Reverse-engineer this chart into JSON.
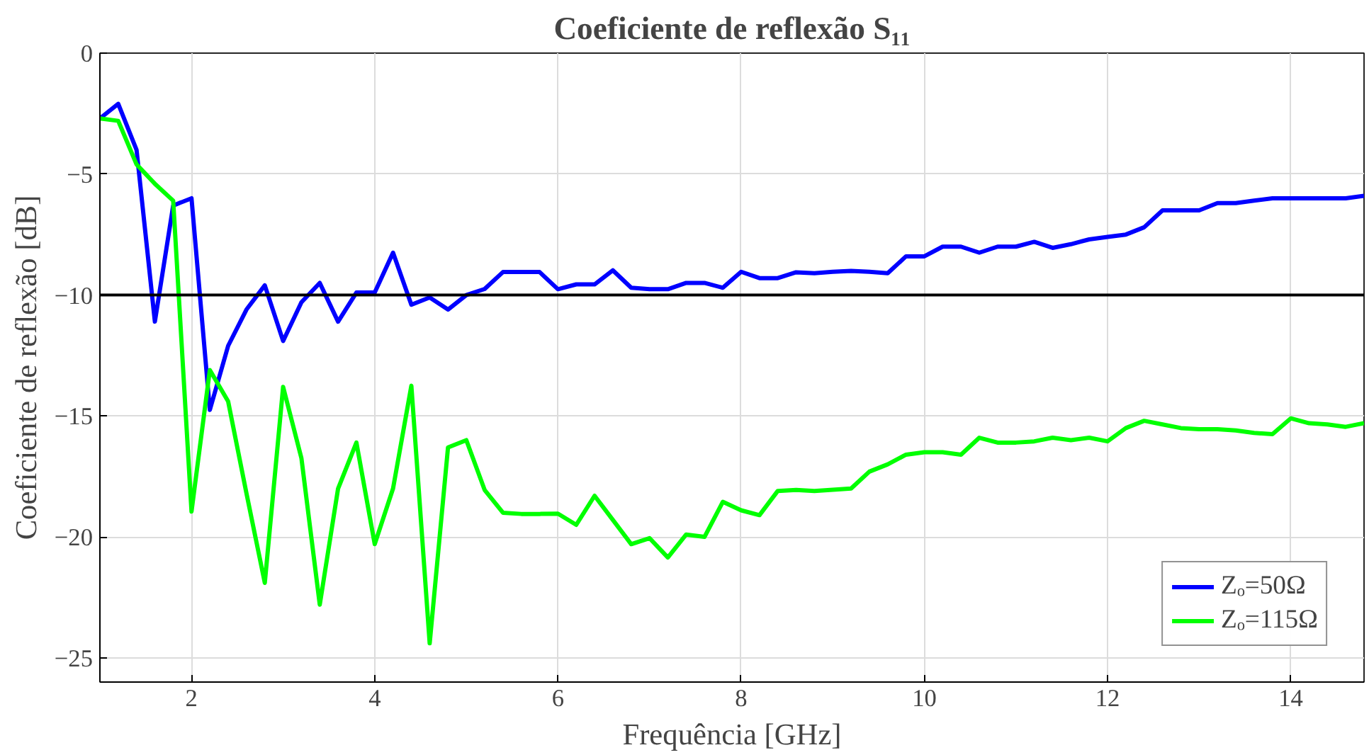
{
  "chart_data": {
    "type": "line",
    "title": "Coeficiente de reflexão S₁₁",
    "xlabel": "Frequência [GHz]",
    "ylabel": "Coeficiente de reflexão [dB]",
    "x": [
      1.0,
      1.2,
      1.4,
      1.6,
      1.8,
      2.0,
      2.2,
      2.4,
      2.6,
      2.8,
      3.0,
      3.2,
      3.4,
      3.6,
      3.8,
      4.0,
      4.2,
      4.4,
      4.6,
      4.8,
      5.0,
      5.2,
      5.4,
      5.6,
      5.8,
      6.0,
      6.2,
      6.4,
      6.6,
      6.8,
      7.0,
      7.2,
      7.4,
      7.6,
      7.8,
      8.0,
      8.2,
      8.4,
      8.6,
      8.8,
      9.0,
      9.2,
      9.4,
      9.6,
      9.8,
      10.0,
      10.2,
      10.4,
      10.6,
      10.8,
      11.0,
      11.2,
      11.4,
      11.6,
      11.8,
      12.0,
      12.2,
      12.4,
      12.6,
      12.8,
      13.0,
      13.2,
      13.4,
      13.6,
      13.8,
      14.0,
      14.2,
      14.4,
      14.6,
      14.8
    ],
    "series": [
      {
        "name": "Zₒ=50Ω",
        "color": "#0000ff",
        "values": [
          -2.7,
          -2.1,
          -4.0,
          -11.1,
          -6.3,
          -6.0,
          -14.75,
          -12.1,
          -10.6,
          -9.6,
          -11.9,
          -10.3,
          -9.5,
          -11.1,
          -9.9,
          -9.9,
          -8.25,
          -10.4,
          -10.1,
          -10.6,
          -10.0,
          -9.75,
          -9.05,
          -9.05,
          -9.05,
          -9.76,
          -9.56,
          -9.56,
          -8.98,
          -9.7,
          -9.76,
          -9.76,
          -9.5,
          -9.5,
          -9.7,
          -9.04,
          -9.3,
          -9.3,
          -9.06,
          -9.1,
          -9.04,
          -9.0,
          -9.04,
          -9.1,
          -8.4,
          -8.4,
          -8.0,
          -8.0,
          -8.25,
          -8.0,
          -8.0,
          -7.8,
          -8.05,
          -7.9,
          -7.7,
          -7.6,
          -7.5,
          -7.2,
          -6.5,
          -6.5,
          -6.5,
          -6.2,
          -6.2,
          -6.1,
          -6.0,
          -6.0,
          -6.0,
          -6.0,
          -6.0,
          -5.9
        ]
      },
      {
        "name": "Zₒ=115Ω",
        "color": "#00ff00",
        "values": [
          -2.7,
          -2.8,
          -4.6,
          -5.4,
          -6.1,
          -18.95,
          -13.1,
          -14.4,
          -18.2,
          -21.9,
          -13.8,
          -16.75,
          -22.8,
          -18.0,
          -16.1,
          -20.3,
          -18.0,
          -13.75,
          -24.4,
          -16.3,
          -16.0,
          -18.06,
          -19.0,
          -19.05,
          -19.05,
          -19.04,
          -19.5,
          -18.3,
          -19.3,
          -20.3,
          -20.05,
          -20.85,
          -19.9,
          -20.0,
          -18.55,
          -18.9,
          -19.1,
          -18.1,
          -18.06,
          -18.1,
          -18.05,
          -18.0,
          -17.3,
          -17.0,
          -16.6,
          -16.5,
          -16.5,
          -16.6,
          -15.9,
          -16.1,
          -16.1,
          -16.05,
          -15.9,
          -16.0,
          -15.9,
          -16.05,
          -15.5,
          -15.2,
          -15.35,
          -15.5,
          -15.55,
          -15.55,
          -15.6,
          -15.7,
          -15.75,
          -15.1,
          -15.3,
          -15.35,
          -15.45,
          -15.3
        ]
      }
    ],
    "ref_lines": [
      {
        "axis": "y",
        "value": -10,
        "color": "#000000"
      }
    ],
    "xlim": [
      1,
      14.8
    ],
    "ylim": [
      -26,
      0
    ],
    "xticks": [
      2,
      4,
      6,
      8,
      10,
      12,
      14
    ],
    "yticks": [
      -25,
      -20,
      -15,
      -10,
      -5,
      0
    ],
    "grid": true,
    "legend": "bottom right"
  }
}
